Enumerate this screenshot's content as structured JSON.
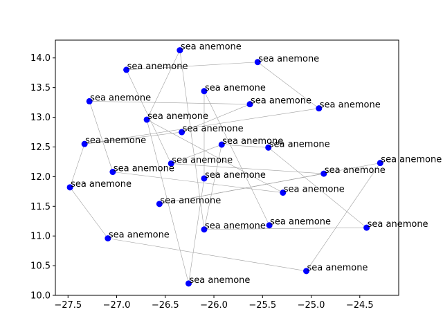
{
  "chart_data": {
    "type": "scatter",
    "title": "",
    "xlabel": "",
    "ylabel": "",
    "xlim": [
      -27.63,
      -24.1
    ],
    "ylim": [
      10.0,
      14.3
    ],
    "xticks": [
      -27.5,
      -27.0,
      -26.5,
      -26.0,
      -25.5,
      -25.0,
      -24.5
    ],
    "xtick_labels": [
      "−27.5",
      "−27.0",
      "−26.5",
      "−26.0",
      "−25.5",
      "−25.0",
      "−24.5"
    ],
    "yticks": [
      10.0,
      10.5,
      11.0,
      11.5,
      12.0,
      12.5,
      13.0,
      13.5,
      14.0
    ],
    "ytick_labels": [
      "10.0",
      "10.5",
      "11.0",
      "11.5",
      "12.0",
      "12.5",
      "13.0",
      "13.5",
      "14.0"
    ],
    "grid": false,
    "point_color": "#0000ff",
    "edge_color": "#a0a0a0",
    "points": [
      {
        "x": -26.35,
        "y": 14.13,
        "label": "sea anemone"
      },
      {
        "x": -25.55,
        "y": 13.93,
        "label": "sea anemone"
      },
      {
        "x": -26.9,
        "y": 13.8,
        "label": "sea anemone"
      },
      {
        "x": -26.1,
        "y": 13.44,
        "label": "sea anemone"
      },
      {
        "x": -27.28,
        "y": 13.27,
        "label": "sea anemone"
      },
      {
        "x": -25.63,
        "y": 13.22,
        "label": "sea anemone"
      },
      {
        "x": -24.92,
        "y": 13.15,
        "label": "sea anemone"
      },
      {
        "x": -26.69,
        "y": 12.96,
        "label": "sea anemone"
      },
      {
        "x": -26.33,
        "y": 12.75,
        "label": "sea anemone"
      },
      {
        "x": -27.33,
        "y": 12.55,
        "label": "sea anemone"
      },
      {
        "x": -25.92,
        "y": 12.54,
        "label": "sea anemone"
      },
      {
        "x": -25.44,
        "y": 12.49,
        "label": "sea anemone"
      },
      {
        "x": -24.29,
        "y": 12.23,
        "label": "sea anemone"
      },
      {
        "x": -26.44,
        "y": 12.22,
        "label": "sea anemone"
      },
      {
        "x": -27.04,
        "y": 12.08,
        "label": "sea anemone"
      },
      {
        "x": -24.87,
        "y": 12.05,
        "label": "sea anemone"
      },
      {
        "x": -26.1,
        "y": 11.97,
        "label": "sea anemone"
      },
      {
        "x": -27.48,
        "y": 11.82,
        "label": "sea anemone"
      },
      {
        "x": -25.29,
        "y": 11.73,
        "label": "sea anemone"
      },
      {
        "x": -26.56,
        "y": 11.54,
        "label": "sea anemone"
      },
      {
        "x": -25.43,
        "y": 11.18,
        "label": "sea anemone"
      },
      {
        "x": -24.43,
        "y": 11.14,
        "label": "sea anemone"
      },
      {
        "x": -26.1,
        "y": 11.11,
        "label": "sea anemone"
      },
      {
        "x": -27.09,
        "y": 10.96,
        "label": "sea anemone"
      },
      {
        "x": -25.05,
        "y": 10.41,
        "label": "sea anemone"
      },
      {
        "x": -26.26,
        "y": 10.2,
        "label": "sea anemone"
      }
    ],
    "edges": [
      [
        2,
        1
      ],
      [
        1,
        6
      ],
      [
        0,
        7
      ],
      [
        0,
        22
      ],
      [
        2,
        13
      ],
      [
        4,
        5
      ],
      [
        4,
        14
      ],
      [
        5,
        8
      ],
      [
        8,
        9
      ],
      [
        6,
        9
      ],
      [
        9,
        17
      ],
      [
        17,
        23
      ],
      [
        23,
        24
      ],
      [
        3,
        20
      ],
      [
        3,
        16
      ],
      [
        7,
        18
      ],
      [
        13,
        10
      ],
      [
        13,
        15
      ],
      [
        10,
        11
      ],
      [
        11,
        21
      ],
      [
        22,
        21
      ],
      [
        19,
        15
      ],
      [
        19,
        12
      ],
      [
        12,
        24
      ],
      [
        14,
        18
      ],
      [
        16,
        25
      ],
      [
        10,
        22
      ],
      [
        7,
        25
      ]
    ]
  }
}
